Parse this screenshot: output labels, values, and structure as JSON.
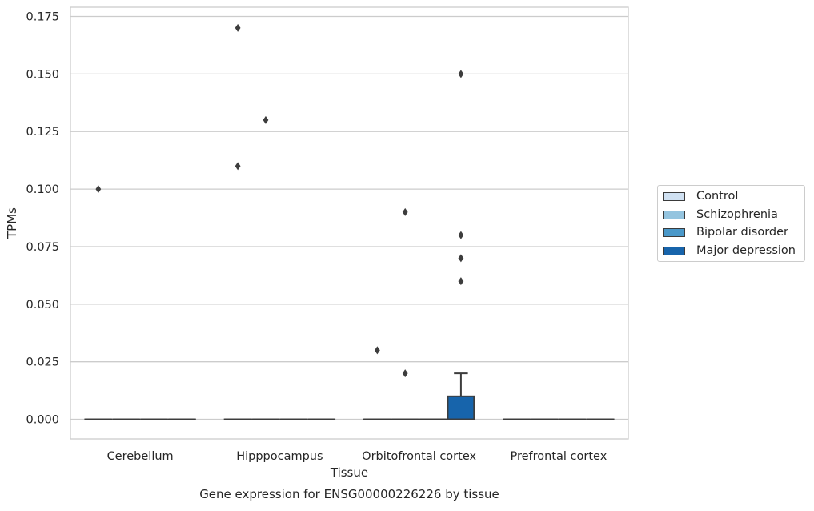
{
  "chart_data": {
    "type": "box",
    "title": "",
    "caption": "Gene expression for ENSG00000226226 by tissue",
    "xlabel": "Tissue",
    "ylabel": "TPMs",
    "ylim": [
      -0.0085,
      0.179
    ],
    "yticks": [
      0.0,
      0.025,
      0.05,
      0.075,
      0.1,
      0.125,
      0.15,
      0.175
    ],
    "ytick_labels": [
      "0.000",
      "0.025",
      "0.050",
      "0.075",
      "0.100",
      "0.125",
      "0.150",
      "0.175"
    ],
    "grid": true,
    "legend_position": "right",
    "categories": [
      "Cerebellum",
      "Hipppocampus",
      "Orbitofrontal cortex",
      "Prefrontal cortex"
    ],
    "series": [
      {
        "name": "Control",
        "color": "#d0e1f2",
        "boxes": [
          {
            "q1": 0,
            "median": 0,
            "q3": 0,
            "whisker_low": 0,
            "whisker_high": 0,
            "outliers": [
              0.1
            ]
          },
          {
            "q1": 0,
            "median": 0,
            "q3": 0,
            "whisker_low": 0,
            "whisker_high": 0,
            "outliers": [
              0.17,
              0.11
            ]
          },
          {
            "q1": 0,
            "median": 0,
            "q3": 0,
            "whisker_low": 0,
            "whisker_high": 0,
            "outliers": [
              0.03
            ]
          },
          {
            "q1": 0,
            "median": 0,
            "q3": 0,
            "whisker_low": 0,
            "whisker_high": 0,
            "outliers": []
          }
        ]
      },
      {
        "name": "Schizophrenia",
        "color": "#94c4df",
        "boxes": [
          {
            "q1": 0,
            "median": 0,
            "q3": 0,
            "whisker_low": 0,
            "whisker_high": 0,
            "outliers": []
          },
          {
            "q1": 0,
            "median": 0,
            "q3": 0,
            "whisker_low": 0,
            "whisker_high": 0,
            "outliers": [
              0.13
            ]
          },
          {
            "q1": 0,
            "median": 0,
            "q3": 0,
            "whisker_low": 0,
            "whisker_high": 0,
            "outliers": [
              0.09,
              0.02
            ]
          },
          {
            "q1": 0,
            "median": 0,
            "q3": 0,
            "whisker_low": 0,
            "whisker_high": 0,
            "outliers": []
          }
        ]
      },
      {
        "name": "Bipolar disorder",
        "color": "#4a98c9",
        "boxes": [
          {
            "q1": 0,
            "median": 0,
            "q3": 0,
            "whisker_low": 0,
            "whisker_high": 0,
            "outliers": []
          },
          {
            "q1": 0,
            "median": 0,
            "q3": 0,
            "whisker_low": 0,
            "whisker_high": 0,
            "outliers": []
          },
          {
            "q1": 0,
            "median": 0,
            "q3": 0,
            "whisker_low": 0,
            "whisker_high": 0,
            "outliers": []
          },
          {
            "q1": 0,
            "median": 0,
            "q3": 0,
            "whisker_low": 0,
            "whisker_high": 0,
            "outliers": []
          }
        ]
      },
      {
        "name": "Major depression",
        "color": "#1764ab",
        "boxes": [
          {
            "q1": 0,
            "median": 0,
            "q3": 0,
            "whisker_low": 0,
            "whisker_high": 0,
            "outliers": []
          },
          {
            "q1": 0,
            "median": 0,
            "q3": 0,
            "whisker_low": 0,
            "whisker_high": 0,
            "outliers": []
          },
          {
            "q1": 0,
            "median": 0,
            "q3": 0.01,
            "whisker_low": 0,
            "whisker_high": 0.02,
            "outliers": [
              0.15,
              0.08,
              0.07,
              0.06
            ]
          },
          {
            "q1": 0,
            "median": 0,
            "q3": 0,
            "whisker_low": 0,
            "whisker_high": 0,
            "outliers": []
          }
        ]
      }
    ]
  }
}
